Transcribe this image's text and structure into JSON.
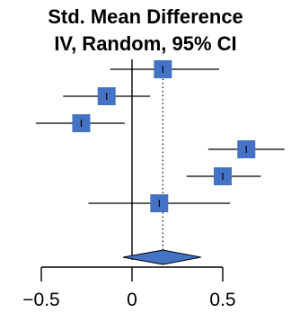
{
  "chart_data": {
    "type": "forest",
    "title_lines": [
      "Std. Mean Difference",
      "IV, Random, 95% CI"
    ],
    "estimate_color": "#4472c4",
    "x_axis": {
      "range": [
        -0.55,
        0.85
      ],
      "ticks": [
        -0.5,
        0,
        0.5
      ],
      "tick_labels": [
        "−0.5",
        "0",
        "0.5"
      ]
    },
    "studies": [
      {
        "estimate": 0.17,
        "ci": [
          -0.12,
          0.48
        ]
      },
      {
        "estimate": -0.14,
        "ci": [
          -0.38,
          0.1
        ]
      },
      {
        "estimate": -0.28,
        "ci": [
          -0.53,
          -0.04
        ]
      },
      {
        "estimate": 0.63,
        "ci": [
          0.42,
          0.84
        ]
      },
      {
        "estimate": 0.5,
        "ci": [
          0.3,
          0.71
        ]
      },
      {
        "estimate": 0.15,
        "ci": [
          -0.24,
          0.54
        ]
      }
    ],
    "pooled": {
      "estimate": 0.17,
      "ci": [
        -0.05,
        0.38
      ]
    }
  }
}
